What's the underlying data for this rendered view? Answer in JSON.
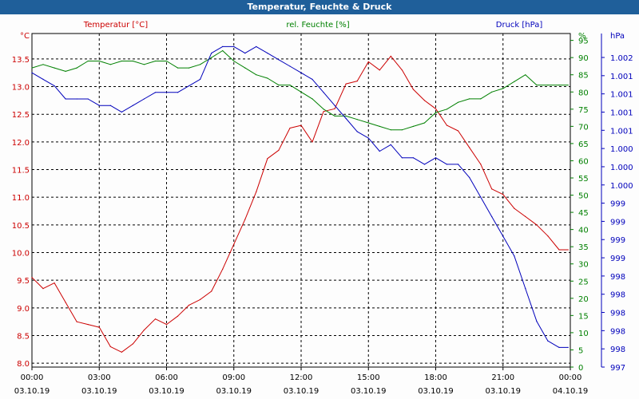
{
  "window": {
    "title": "Temperatur, Feuchte & Druck"
  },
  "chart_data": {
    "type": "line",
    "title": "Temperatur, Feuchte & Druck",
    "grid": true,
    "x": {
      "ticks": [
        {
          "time": "00:00",
          "date": "03.10.19"
        },
        {
          "time": "03:00",
          "date": "03.10.19"
        },
        {
          "time": "06:00",
          "date": "03.10.19"
        },
        {
          "time": "09:00",
          "date": "03.10.19"
        },
        {
          "time": "12:00",
          "date": "03.10.19"
        },
        {
          "time": "15:00",
          "date": "03.10.19"
        },
        {
          "time": "18:00",
          "date": "03.10.19"
        },
        {
          "time": "21:00",
          "date": "03.10.19"
        },
        {
          "time": "00:00",
          "date": "04.10.19"
        }
      ],
      "range_hours": [
        0,
        24
      ]
    },
    "axes": {
      "temperature": {
        "label": "Temperatur [°C]",
        "unit": "°C",
        "color": "#cc0000",
        "side": "left",
        "range": [
          7.93,
          13.96
        ],
        "ticks": [
          "8.0",
          "8.5",
          "9.0",
          "9.5",
          "10.0",
          "10.5",
          "11.0",
          "11.5",
          "12.0",
          "12.5",
          "13.0",
          "13.5"
        ]
      },
      "humidity": {
        "label": "rel. Feuchte [%]",
        "unit": "%",
        "color": "#008000",
        "side": "right",
        "range": [
          0,
          97
        ],
        "ticks": [
          "0",
          "5",
          "10",
          "15",
          "20",
          "25",
          "30",
          "35",
          "40",
          "45",
          "50",
          "55",
          "60",
          "65",
          "70",
          "75",
          "80",
          "85",
          "90",
          "95"
        ]
      },
      "pressure": {
        "label": "Druck [hPa]",
        "unit": "hPa",
        "color": "#0000bb",
        "side": "right",
        "range": [
          997.0,
          1002.1
        ],
        "ticks": [
          "997",
          "998",
          "998",
          "998",
          "998",
          "998",
          "999",
          "999",
          "999",
          "999",
          "1.000",
          "1.000",
          "1.000",
          "1.001",
          "1.001",
          "1.001",
          "1.001",
          "1.002"
        ]
      }
    },
    "series": [
      {
        "name": "Temperatur [°C]",
        "axis": "temperature",
        "color": "#cc0000",
        "x": [
          0,
          0.5,
          1,
          1.5,
          2,
          2.5,
          3,
          3.5,
          4,
          4.5,
          5,
          5.5,
          6,
          6.5,
          7,
          7.5,
          8,
          8.5,
          9,
          9.5,
          10,
          10.5,
          11,
          11.5,
          12,
          12.5,
          13,
          13.5,
          14,
          14.5,
          15,
          15.5,
          16,
          16.5,
          17,
          17.5,
          18,
          18.5,
          19,
          19.5,
          20,
          20.5,
          21,
          21.5,
          22,
          22.5,
          23,
          23.5,
          23.9
        ],
        "values": [
          9.55,
          9.35,
          9.45,
          9.1,
          8.75,
          8.7,
          8.65,
          8.3,
          8.2,
          8.35,
          8.6,
          8.8,
          8.7,
          8.85,
          9.05,
          9.15,
          9.3,
          9.7,
          10.15,
          10.6,
          11.1,
          11.7,
          11.85,
          12.25,
          12.3,
          12.0,
          12.55,
          12.6,
          13.05,
          13.1,
          13.45,
          13.3,
          13.55,
          13.3,
          12.95,
          12.75,
          12.6,
          12.3,
          12.2,
          11.9,
          11.6,
          11.15,
          11.05,
          10.8,
          10.65,
          10.5,
          10.3,
          10.05,
          10.05
        ]
      },
      {
        "name": "rel. Feuchte [%]",
        "axis": "humidity",
        "color": "#008000",
        "x": [
          0,
          0.5,
          1,
          1.5,
          2,
          2.5,
          3,
          3.5,
          4,
          4.5,
          5,
          5.5,
          6,
          6.5,
          7,
          7.5,
          8,
          8.5,
          9,
          9.5,
          10,
          10.5,
          11,
          11.5,
          12,
          12.5,
          13,
          13.5,
          14,
          14.5,
          15,
          15.5,
          16,
          16.5,
          17,
          17.5,
          18,
          18.5,
          19,
          19.5,
          20,
          20.5,
          21,
          21.5,
          22,
          22.5,
          23,
          23.5,
          23.9
        ],
        "values": [
          87,
          88,
          87,
          86,
          87,
          89,
          89,
          88,
          89,
          89,
          88,
          89,
          89,
          87,
          87,
          88,
          90,
          92,
          89,
          87,
          85,
          84,
          82,
          82,
          80,
          78,
          75,
          73,
          73,
          72,
          71,
          70,
          69,
          69,
          70,
          71,
          74,
          75,
          77,
          78,
          78,
          80,
          81,
          83,
          85,
          82,
          82,
          82,
          82
        ]
      },
      {
        "name": "Druck [hPa]",
        "axis": "pressure",
        "color": "#0000bb",
        "x": [
          0,
          0.5,
          1,
          1.5,
          2,
          2.5,
          3,
          3.5,
          4,
          4.5,
          5,
          5.5,
          6,
          6.5,
          7,
          7.5,
          8,
          8.5,
          9,
          9.5,
          10,
          10.5,
          11,
          11.5,
          12,
          12.5,
          13,
          13.5,
          14,
          14.5,
          15,
          15.5,
          16,
          16.5,
          17,
          17.5,
          18,
          18.5,
          19,
          19.5,
          20,
          20.5,
          21,
          21.5,
          22,
          22.5,
          23,
          23.5,
          23.9
        ],
        "values": [
          1001.5,
          1001.4,
          1001.3,
          1001.1,
          1001.1,
          1001.1,
          1001.0,
          1001.0,
          1000.9,
          1001.0,
          1001.1,
          1001.2,
          1001.2,
          1001.2,
          1001.3,
          1001.4,
          1001.8,
          1001.9,
          1001.9,
          1001.8,
          1001.9,
          1001.8,
          1001.7,
          1001.6,
          1001.5,
          1001.4,
          1001.2,
          1001.0,
          1000.8,
          1000.6,
          1000.5,
          1000.3,
          1000.4,
          1000.2,
          1000.2,
          1000.1,
          1000.2,
          1000.1,
          1000.1,
          999.9,
          999.6,
          999.3,
          999.0,
          998.7,
          998.2,
          997.7,
          997.4,
          997.3,
          997.3
        ]
      }
    ]
  }
}
